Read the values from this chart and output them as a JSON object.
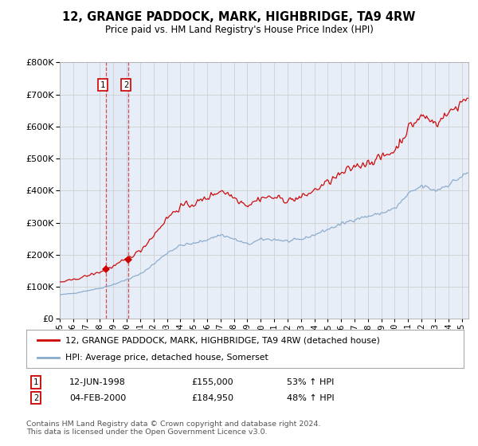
{
  "title": "12, GRANGE PADDOCK, MARK, HIGHBRIDGE, TA9 4RW",
  "subtitle": "Price paid vs. HM Land Registry's House Price Index (HPI)",
  "background_color": "#ffffff",
  "grid_color": "#cccccc",
  "plot_bg_color": "#e8eef8",
  "red_line_color": "#cc0000",
  "blue_line_color": "#88aacc",
  "sale1_date_label": "12-JUN-1998",
  "sale1_price": 155000,
  "sale1_pct": "53% ↑ HPI",
  "sale2_date_label": "04-FEB-2000",
  "sale2_price": 184950,
  "sale2_pct": "48% ↑ HPI",
  "sale1_year": 1998.458,
  "sale2_year": 2000.086,
  "ylim": [
    0,
    800000
  ],
  "xlim_start": 1995.0,
  "xlim_end": 2025.5,
  "legend_label_red": "12, GRANGE PADDOCK, MARK, HIGHBRIDGE, TA9 4RW (detached house)",
  "legend_label_blue": "HPI: Average price, detached house, Somerset",
  "footer": "Contains HM Land Registry data © Crown copyright and database right 2024.\nThis data is licensed under the Open Government Licence v3.0."
}
